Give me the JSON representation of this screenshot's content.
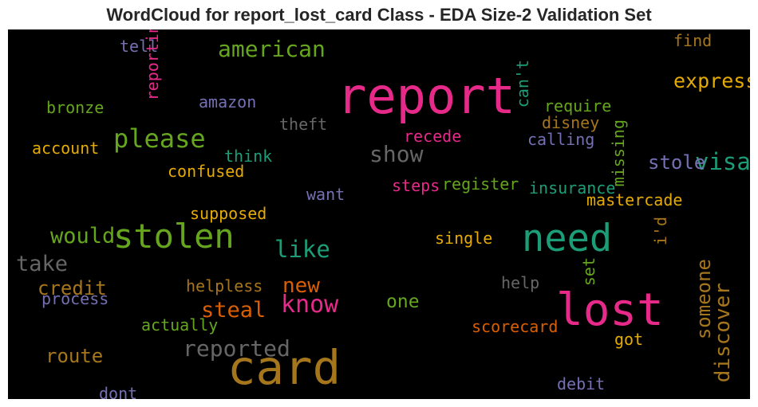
{
  "chart_data": {
    "type": "wordcloud",
    "title": "WordCloud for report_lost_card Class - EDA Size-2 Validation Set",
    "background": "#000000",
    "words": [
      {
        "text": "report",
        "weight": 1.0,
        "color": "#e7298a",
        "orientation": "horizontal"
      },
      {
        "text": "card",
        "weight": 0.95,
        "color": "#a6761d",
        "orientation": "horizontal"
      },
      {
        "text": "lost",
        "weight": 0.88,
        "color": "#e7298a",
        "orientation": "horizontal"
      },
      {
        "text": "need",
        "weight": 0.7,
        "color": "#1b9e77",
        "orientation": "horizontal"
      },
      {
        "text": "stolen",
        "weight": 0.62,
        "color": "#66a61e",
        "orientation": "horizontal"
      },
      {
        "text": "please",
        "weight": 0.42,
        "color": "#66a61e",
        "orientation": "horizontal"
      },
      {
        "text": "know",
        "weight": 0.38,
        "color": "#e7298a",
        "orientation": "horizontal"
      },
      {
        "text": "visa",
        "weight": 0.36,
        "color": "#1b9e77",
        "orientation": "horizontal"
      },
      {
        "text": "like",
        "weight": 0.36,
        "color": "#1b9e77",
        "orientation": "horizontal"
      },
      {
        "text": "american",
        "weight": 0.34,
        "color": "#66a61e",
        "orientation": "horizontal"
      },
      {
        "text": "reported",
        "weight": 0.34,
        "color": "#666666",
        "orientation": "horizontal"
      },
      {
        "text": "show",
        "weight": 0.34,
        "color": "#666666",
        "orientation": "horizontal"
      },
      {
        "text": "would",
        "weight": 0.32,
        "color": "#66a61e",
        "orientation": "horizontal"
      },
      {
        "text": "take",
        "weight": 0.32,
        "color": "#666666",
        "orientation": "horizontal"
      },
      {
        "text": "steal",
        "weight": 0.32,
        "color": "#d95f02",
        "orientation": "horizontal"
      },
      {
        "text": "new",
        "weight": 0.3,
        "color": "#d95f02",
        "orientation": "horizontal"
      },
      {
        "text": "discover",
        "weight": 0.3,
        "color": "#a6761d",
        "orientation": "vertical"
      },
      {
        "text": "express",
        "weight": 0.28,
        "color": "#e6ab02",
        "orientation": "horizontal"
      },
      {
        "text": "route",
        "weight": 0.27,
        "color": "#a6761d",
        "orientation": "horizontal"
      },
      {
        "text": "credit",
        "weight": 0.27,
        "color": "#a6761d",
        "orientation": "horizontal"
      },
      {
        "text": "someone",
        "weight": 0.27,
        "color": "#a6761d",
        "orientation": "vertical"
      },
      {
        "text": "stole",
        "weight": 0.27,
        "color": "#7570b3",
        "orientation": "horizontal"
      },
      {
        "text": "one",
        "weight": 0.25,
        "color": "#66a61e",
        "orientation": "horizontal"
      },
      {
        "text": "tell",
        "weight": 0.18,
        "color": "#7570b3",
        "orientation": "horizontal"
      },
      {
        "text": "reporting",
        "weight": 0.18,
        "color": "#e7298a",
        "orientation": "vertical"
      },
      {
        "text": "can't",
        "weight": 0.18,
        "color": "#1b9e77",
        "orientation": "vertical"
      },
      {
        "text": "find",
        "weight": 0.18,
        "color": "#a6761d",
        "orientation": "horizontal"
      },
      {
        "text": "amazon",
        "weight": 0.18,
        "color": "#7570b3",
        "orientation": "horizontal"
      },
      {
        "text": "require",
        "weight": 0.18,
        "color": "#66a61e",
        "orientation": "horizontal"
      },
      {
        "text": "bronze",
        "weight": 0.18,
        "color": "#66a61e",
        "orientation": "horizontal"
      },
      {
        "text": "theft",
        "weight": 0.18,
        "color": "#666666",
        "orientation": "horizontal"
      },
      {
        "text": "disney",
        "weight": 0.18,
        "color": "#a6761d",
        "orientation": "horizontal"
      },
      {
        "text": "recede",
        "weight": 0.18,
        "color": "#e7298a",
        "orientation": "horizontal"
      },
      {
        "text": "calling",
        "weight": 0.18,
        "color": "#7570b3",
        "orientation": "horizontal"
      },
      {
        "text": "account",
        "weight": 0.18,
        "color": "#e6ab02",
        "orientation": "horizontal"
      },
      {
        "text": "think",
        "weight": 0.18,
        "color": "#1b9e77",
        "orientation": "horizontal"
      },
      {
        "text": "missing",
        "weight": 0.18,
        "color": "#66a61e",
        "orientation": "vertical"
      },
      {
        "text": "confused",
        "weight": 0.18,
        "color": "#e6ab02",
        "orientation": "horizontal"
      },
      {
        "text": "steps",
        "weight": 0.18,
        "color": "#e7298a",
        "orientation": "horizontal"
      },
      {
        "text": "register",
        "weight": 0.18,
        "color": "#66a61e",
        "orientation": "horizontal"
      },
      {
        "text": "insurance",
        "weight": 0.18,
        "color": "#1b9e77",
        "orientation": "horizontal"
      },
      {
        "text": "want",
        "weight": 0.18,
        "color": "#7570b3",
        "orientation": "horizontal"
      },
      {
        "text": "mastercade",
        "weight": 0.18,
        "color": "#e6ab02",
        "orientation": "horizontal"
      },
      {
        "text": "supposed",
        "weight": 0.18,
        "color": "#e6ab02",
        "orientation": "horizontal"
      },
      {
        "text": "single",
        "weight": 0.18,
        "color": "#e6ab02",
        "orientation": "horizontal"
      },
      {
        "text": "i'd",
        "weight": 0.18,
        "color": "#a6761d",
        "orientation": "vertical"
      },
      {
        "text": "set",
        "weight": 0.18,
        "color": "#66a61e",
        "orientation": "vertical"
      },
      {
        "text": "helpless",
        "weight": 0.18,
        "color": "#a6761d",
        "orientation": "horizontal"
      },
      {
        "text": "help",
        "weight": 0.18,
        "color": "#666666",
        "orientation": "horizontal"
      },
      {
        "text": "process",
        "weight": 0.18,
        "color": "#7570b3",
        "orientation": "horizontal"
      },
      {
        "text": "actually",
        "weight": 0.18,
        "color": "#66a61e",
        "orientation": "horizontal"
      },
      {
        "text": "scorecard",
        "weight": 0.18,
        "color": "#d95f02",
        "orientation": "horizontal"
      },
      {
        "text": "got",
        "weight": 0.18,
        "color": "#e6ab02",
        "orientation": "horizontal"
      },
      {
        "text": "dont",
        "weight": 0.18,
        "color": "#7570b3",
        "orientation": "horizontal"
      },
      {
        "text": "debit",
        "weight": 0.18,
        "color": "#7570b3",
        "orientation": "horizontal"
      }
    ]
  }
}
